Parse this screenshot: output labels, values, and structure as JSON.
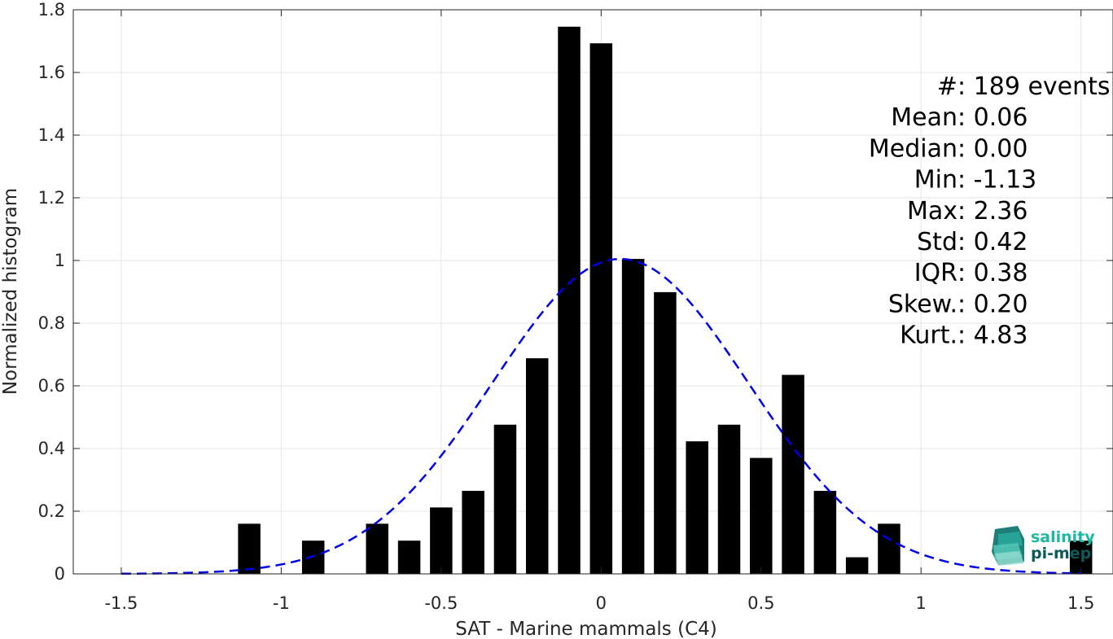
{
  "chart_data": {
    "type": "bar",
    "xlabel": "SAT - Marine mammals (C4)",
    "ylabel": "Normalized histogram",
    "xlim": [
      -1.65,
      1.6
    ],
    "ylim": [
      0,
      1.8
    ],
    "grid": true,
    "x_ticks": [
      -1.5,
      -1,
      -0.5,
      0,
      0.5,
      1,
      1.5
    ],
    "x_tick_labels": [
      "-1.5",
      "-1",
      "-0.5",
      "0",
      "0.5",
      "1",
      "1.5"
    ],
    "y_ticks": [
      0,
      0.2,
      0.4,
      0.6,
      0.8,
      1,
      1.2,
      1.4,
      1.6,
      1.8
    ],
    "y_tick_labels": [
      "0",
      "0.2",
      "0.4",
      "0.6",
      "0.8",
      "1",
      "1.2",
      "1.4",
      "1.6",
      "1.8"
    ],
    "bin_width": 0.1,
    "bars": {
      "x": [
        -1.1,
        -0.9,
        -0.7,
        -0.6,
        -0.5,
        -0.4,
        -0.3,
        -0.2,
        -0.1,
        0.0,
        0.1,
        0.2,
        0.3,
        0.4,
        0.5,
        0.6,
        0.7,
        0.8,
        0.9,
        1.5
      ],
      "values": [
        0.16,
        0.106,
        0.16,
        0.106,
        0.212,
        0.265,
        0.476,
        0.688,
        1.746,
        1.693,
        1.005,
        0.899,
        0.423,
        0.476,
        0.37,
        0.635,
        0.265,
        0.053,
        0.16,
        0.106
      ],
      "color": "#000000"
    },
    "fit_curve": {
      "style": "dashed",
      "color": "#0000e6",
      "x_range": [
        -1.5,
        1.5
      ],
      "mean": 0.06,
      "std": 0.4,
      "peak": 1.005
    },
    "stats": [
      {
        "label": "#  ",
        "value": ": 189 events"
      },
      {
        "label": "Mean ",
        "value": ": 0.06"
      },
      {
        "label": "Median ",
        "value": ": 0.00"
      },
      {
        "label": "Min ",
        "value": ": -1.13"
      },
      {
        "label": "Max ",
        "value": ": 2.36"
      },
      {
        "label": "Std ",
        "value": ": 0.42"
      },
      {
        "label": "IQR ",
        "value": ": 0.38"
      },
      {
        "label": "Skew. ",
        "value": ": 0.20"
      },
      {
        "label": "Kurt. ",
        "value": ": 4.83"
      }
    ]
  },
  "logo": {
    "line1": "salinity",
    "line2": "pi-mep",
    "color1": "#1bb9a0",
    "color2": "#0d5a5a"
  }
}
